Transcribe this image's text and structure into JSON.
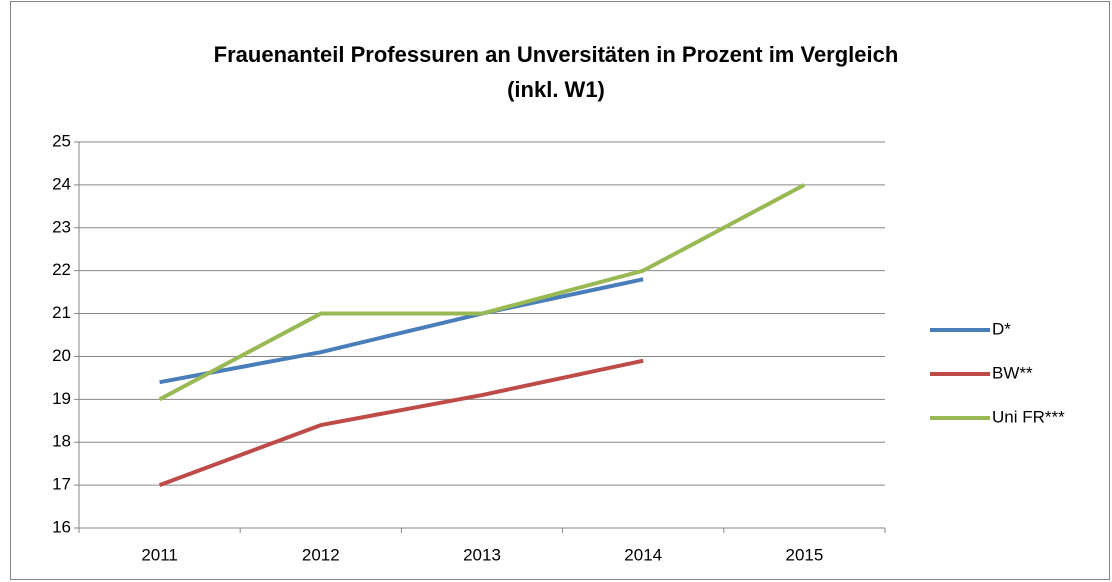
{
  "chart_data": {
    "type": "line",
    "title": [
      "Frauenanteil Professuren an Unversitäten in Prozent im Vergleich",
      "(inkl. W1)"
    ],
    "categories": [
      "2011",
      "2012",
      "2013",
      "2014",
      "2015"
    ],
    "series": [
      {
        "name": "D*",
        "color": "#4a7ebb",
        "values": [
          19.4,
          20.1,
          21,
          21.8,
          null
        ]
      },
      {
        "name": "BW**",
        "color": "#be4b48",
        "values": [
          17,
          18.4,
          19.1,
          19.9,
          null
        ]
      },
      {
        "name": "Uni FR***",
        "color": "#98b954",
        "values": [
          19,
          21,
          21,
          22,
          24
        ]
      }
    ],
    "ylim": [
      16,
      25
    ],
    "yticks": [
      16,
      17,
      18,
      19,
      20,
      21,
      22,
      23,
      24,
      25
    ],
    "grid": true,
    "legend": "right"
  }
}
